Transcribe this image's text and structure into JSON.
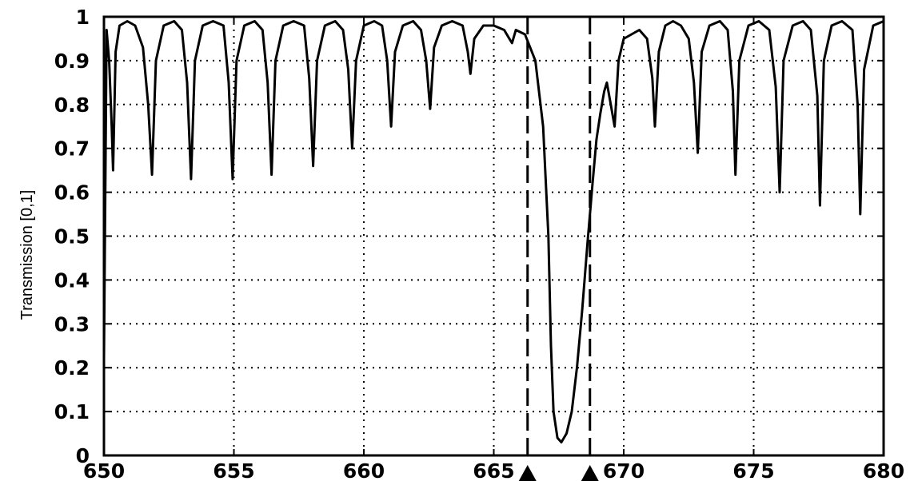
{
  "chart_data": {
    "type": "line",
    "title": "",
    "xlabel": "",
    "ylabel": "Transmission [0,1]",
    "xlim": [
      650,
      680
    ],
    "ylim": [
      0,
      1
    ],
    "grid": true,
    "x_ticks": [
      "650",
      "655",
      "660",
      "665",
      "670",
      "675",
      "680"
    ],
    "y_ticks": [
      "0",
      "0.1",
      "0.2",
      "0.3",
      "0.4",
      "0.5",
      "0.6",
      "0.7",
      "0.8",
      "0.9",
      "1"
    ],
    "series": [
      {
        "name": "",
        "x": [
          650.0,
          650.1,
          650.2,
          650.3,
          650.35,
          650.45,
          650.6,
          650.9,
          651.2,
          651.5,
          651.7,
          651.85,
          652.0,
          652.3,
          652.7,
          653.0,
          653.2,
          653.35,
          653.5,
          653.8,
          654.2,
          654.6,
          654.8,
          654.95,
          655.1,
          655.4,
          655.8,
          656.1,
          656.3,
          656.45,
          656.6,
          656.9,
          657.3,
          657.7,
          657.9,
          658.05,
          658.2,
          658.5,
          658.9,
          659.2,
          659.4,
          659.55,
          659.7,
          660.0,
          660.4,
          660.7,
          660.9,
          661.05,
          661.2,
          661.5,
          661.9,
          662.2,
          662.4,
          662.55,
          662.7,
          663.0,
          663.4,
          663.8,
          664.0,
          664.1,
          664.25,
          664.6,
          665.0,
          665.4,
          665.6,
          665.7,
          665.85,
          666.2,
          666.6,
          666.9,
          667.1,
          667.2,
          667.3,
          667.45,
          667.6,
          667.8,
          668.0,
          668.2,
          668.4,
          668.6,
          668.8,
          668.95,
          669.1,
          669.25,
          669.35,
          669.5,
          669.65,
          669.8,
          670.0,
          670.3,
          670.6,
          670.9,
          671.1,
          671.2,
          671.35,
          671.6,
          671.9,
          672.2,
          672.5,
          672.7,
          672.85,
          673.0,
          673.3,
          673.7,
          674.0,
          674.2,
          674.3,
          674.45,
          674.8,
          675.2,
          675.6,
          675.85,
          676.0,
          676.15,
          676.5,
          676.9,
          677.2,
          677.45,
          677.55,
          677.7,
          678.0,
          678.4,
          678.8,
          679.0,
          679.1,
          679.25,
          679.6,
          680.0
        ],
        "y": [
          0.22,
          0.97,
          0.9,
          0.75,
          0.65,
          0.92,
          0.98,
          0.99,
          0.98,
          0.93,
          0.8,
          0.64,
          0.9,
          0.98,
          0.99,
          0.97,
          0.85,
          0.63,
          0.9,
          0.98,
          0.99,
          0.98,
          0.85,
          0.63,
          0.9,
          0.98,
          0.99,
          0.97,
          0.85,
          0.64,
          0.9,
          0.98,
          0.99,
          0.98,
          0.86,
          0.66,
          0.9,
          0.98,
          0.99,
          0.97,
          0.88,
          0.7,
          0.9,
          0.98,
          0.99,
          0.98,
          0.9,
          0.75,
          0.92,
          0.98,
          0.99,
          0.97,
          0.9,
          0.79,
          0.93,
          0.98,
          0.99,
          0.98,
          0.92,
          0.87,
          0.95,
          0.98,
          0.98,
          0.97,
          0.95,
          0.94,
          0.97,
          0.96,
          0.9,
          0.75,
          0.5,
          0.25,
          0.1,
          0.04,
          0.03,
          0.05,
          0.1,
          0.2,
          0.33,
          0.48,
          0.62,
          0.72,
          0.78,
          0.83,
          0.85,
          0.8,
          0.75,
          0.9,
          0.95,
          0.96,
          0.97,
          0.95,
          0.86,
          0.75,
          0.92,
          0.98,
          0.99,
          0.98,
          0.95,
          0.85,
          0.69,
          0.92,
          0.98,
          0.99,
          0.97,
          0.83,
          0.64,
          0.9,
          0.98,
          0.99,
          0.97,
          0.84,
          0.6,
          0.9,
          0.98,
          0.99,
          0.97,
          0.82,
          0.57,
          0.9,
          0.98,
          0.99,
          0.97,
          0.8,
          0.55,
          0.88,
          0.98,
          0.99
        ]
      }
    ],
    "vertical_markers": [
      {
        "x": 666.3,
        "style": "dashed",
        "arrow": "up-triangle"
      },
      {
        "x": 668.7,
        "style": "dashed",
        "arrow": "up-triangle"
      }
    ]
  }
}
